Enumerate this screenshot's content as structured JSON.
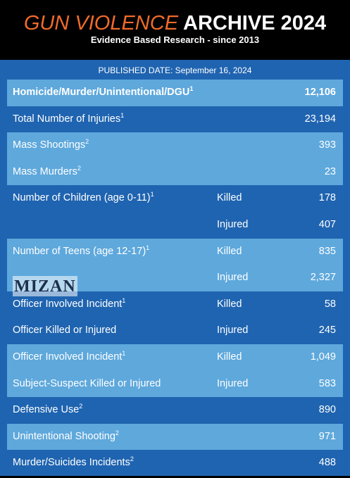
{
  "header": {
    "title_orange": "GUN VIOLENCE",
    "title_white": "ARCHIVE 2024",
    "subtitle": "Evidence Based Research - since 2013"
  },
  "published": "PUBLISHED DATE: September 16, 2024",
  "rows": [
    {
      "label": "Homicide/Murder/Unintentional/DGU",
      "sup": "1",
      "type": "",
      "value": "12,106"
    },
    {
      "label": "Total Number of Injuries",
      "sup": "1",
      "type": "",
      "value": "23,194"
    },
    {
      "label": "Mass Shootings",
      "sup": "2",
      "type": "",
      "value": "393"
    },
    {
      "label": "Mass Murders",
      "sup": "2",
      "type": "",
      "value": "23"
    },
    {
      "label": "Number of Children (age 0-11)",
      "sup": "1",
      "type": "Killed",
      "value": "178"
    },
    {
      "label": "",
      "sup": "",
      "type": "Injured",
      "value": "407"
    },
    {
      "label": "Number of Teens (age 12-17)",
      "sup": "1",
      "type": "Killed",
      "value": "835"
    },
    {
      "label": "",
      "sup": "",
      "type": "Injured",
      "value": "2,327"
    },
    {
      "label": "Officer Involved Incident",
      "sup": "1",
      "type": "Killed",
      "value": "58"
    },
    {
      "label": "Officer Killed or Injured",
      "sup": "",
      "type": "Injured",
      "value": "245"
    },
    {
      "label": "Officer Involved Incident",
      "sup": "1",
      "type": "Killed",
      "value": "1,049"
    },
    {
      "label": "Subject-Suspect Killed or Injured",
      "sup": "",
      "type": "Injured",
      "value": "583"
    },
    {
      "label": "Defensive Use",
      "sup": "2",
      "type": "",
      "value": "890"
    },
    {
      "label": "Unintentional Shooting",
      "sup": "2",
      "type": "",
      "value": "971"
    },
    {
      "label": "Murder/Suicides Incidents",
      "sup": "2",
      "type": "",
      "value": "488"
    }
  ],
  "watermark": "MIZAN",
  "colors": {
    "header_bg": "#000000",
    "title_accent": "#f06b2a",
    "dark_row": "#1f64b0",
    "light_row": "#5ea8dc"
  }
}
